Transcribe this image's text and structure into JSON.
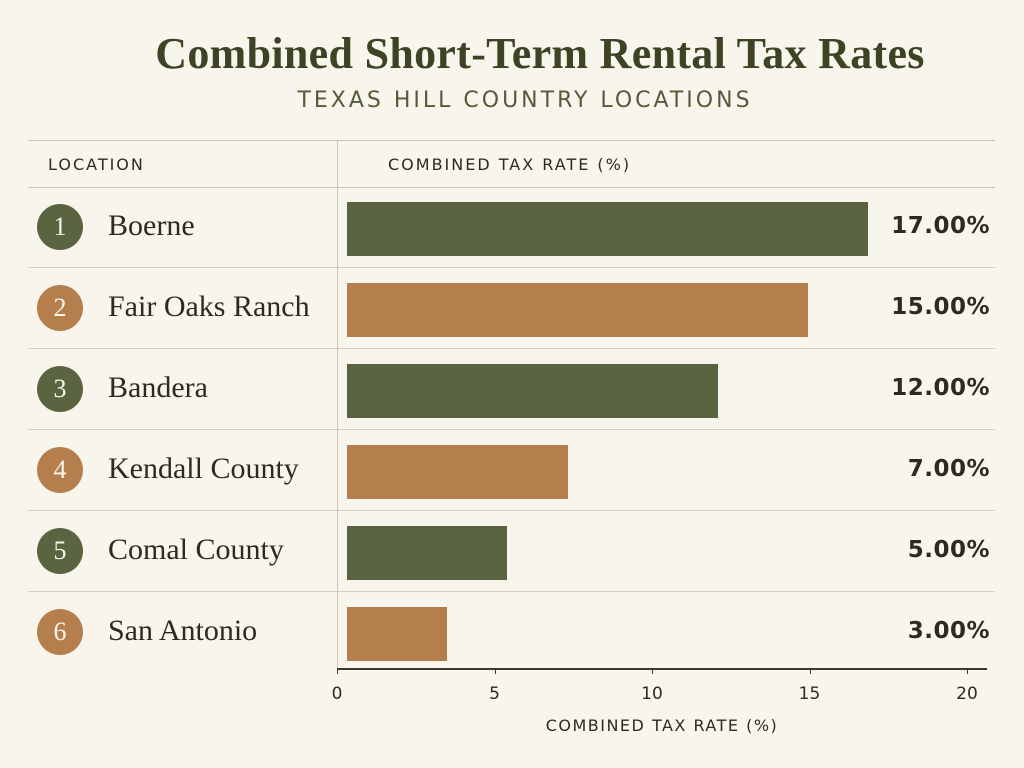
{
  "chart_data": {
    "type": "bar",
    "orientation": "horizontal",
    "title": "Combined Short-Term Rental Tax Rates",
    "subtitle": "TEXAS HILL COUNTRY LOCATIONS",
    "column_headers": {
      "location": "LOCATION",
      "rate": "COMBINED TAX RATE (%)"
    },
    "xlabel": "COMBINED TAX RATE (%)",
    "xlim": [
      0,
      20
    ],
    "xticks": [
      0,
      5,
      10,
      15,
      20
    ],
    "categories": [
      "Boerne",
      "Fair Oaks Ranch",
      "Bandera",
      "Kendall County",
      "Comal County",
      "San Antonio"
    ],
    "ranks": [
      "1",
      "2",
      "3",
      "4",
      "5",
      "6"
    ],
    "values": [
      17.0,
      15.0,
      12.0,
      7.0,
      5.0,
      3.0
    ],
    "value_labels": [
      "17.00%",
      "15.00%",
      "12.00%",
      "7.00%",
      "5.00%",
      "3.00%"
    ],
    "colors": [
      "#5a6440",
      "#b47f4c",
      "#5a6440",
      "#b47f4c",
      "#5a6440",
      "#b47f4c"
    ],
    "grid": false
  }
}
